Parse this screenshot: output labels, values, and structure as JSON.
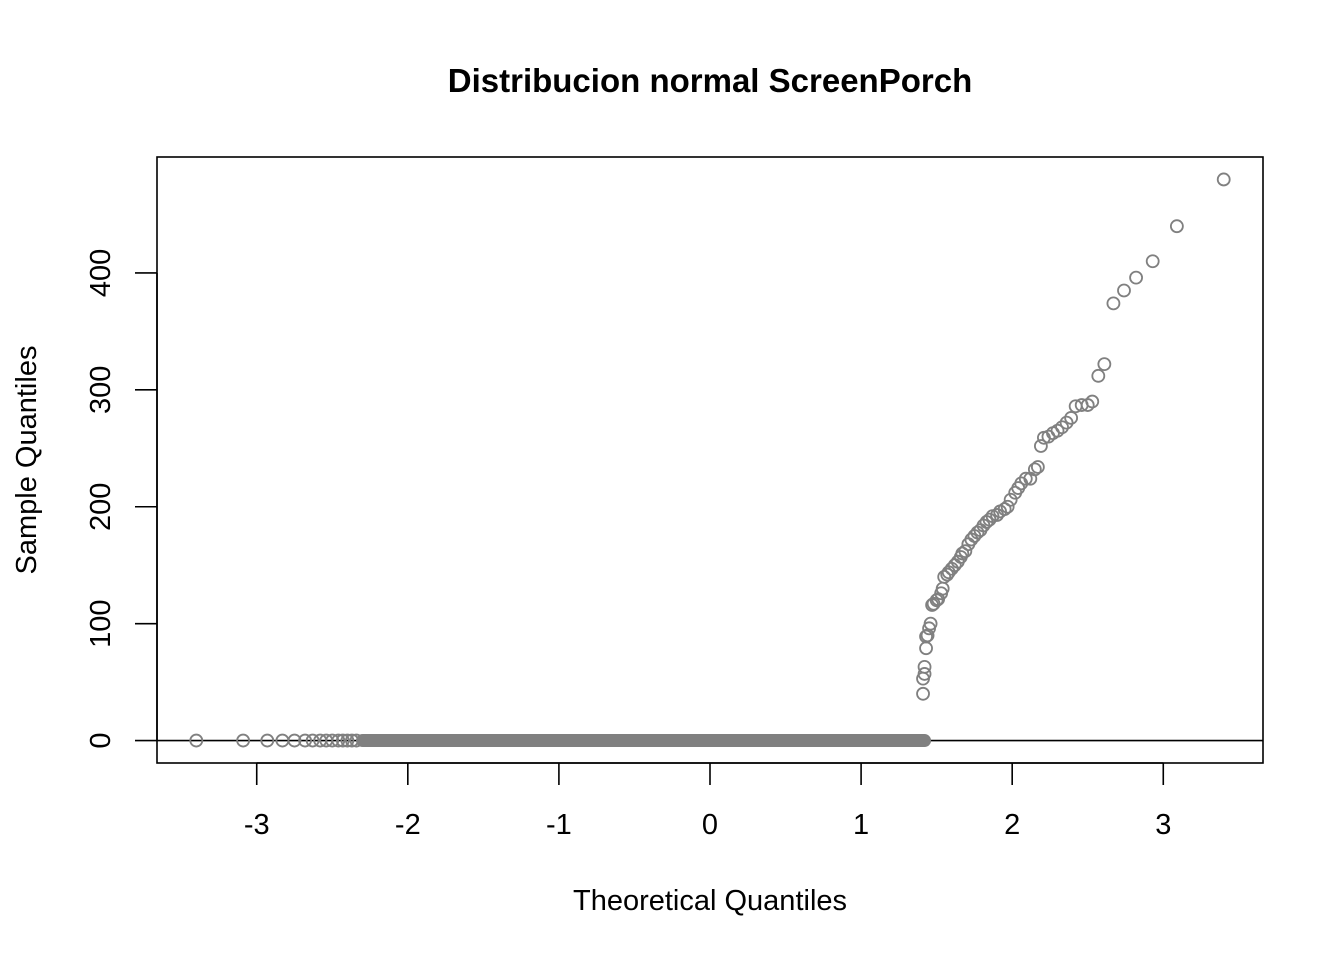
{
  "chart_data": {
    "type": "scatter",
    "title": "Distribucion normal ScreenPorch",
    "xlabel": "Theoretical Quantiles",
    "ylabel": "Sample Quantiles",
    "xlim": [
      -3.66,
      3.66
    ],
    "ylim": [
      -19.2,
      499.2
    ],
    "x_ticks": [
      -3,
      -2,
      -1,
      0,
      1,
      2,
      3
    ],
    "x_tick_labels": [
      "-3",
      "-2",
      "-1",
      "0",
      "1",
      "2",
      "3"
    ],
    "y_ticks": [
      0,
      100,
      200,
      300,
      400
    ],
    "y_tick_labels": [
      "0",
      "100",
      "200",
      "300",
      "400"
    ],
    "reference_line": {
      "type": "horizontal",
      "y": 0,
      "color": "#000000"
    },
    "grid": false,
    "legend": "none",
    "marker": {
      "shape": "open-circle",
      "color": "#808080"
    },
    "zero_segment": {
      "x_start": -2.3,
      "x_end": 1.42,
      "y": 0
    },
    "series": [
      {
        "points": [
          [
            -3.4,
            0
          ],
          [
            -3.09,
            0
          ],
          [
            -2.93,
            0
          ],
          [
            -2.83,
            0
          ],
          [
            -2.75,
            0
          ],
          [
            -2.68,
            0
          ],
          [
            -2.63,
            0
          ],
          [
            -2.58,
            0
          ],
          [
            -2.54,
            0
          ],
          [
            -2.5,
            0
          ],
          [
            -2.46,
            0
          ],
          [
            -2.43,
            0
          ],
          [
            -2.4,
            0
          ],
          [
            -2.37,
            0
          ],
          [
            -2.34,
            0
          ],
          [
            1.41,
            40
          ],
          [
            1.41,
            53
          ],
          [
            1.42,
            57
          ],
          [
            1.42,
            63
          ],
          [
            1.43,
            79
          ],
          [
            1.43,
            89
          ],
          [
            1.44,
            90
          ],
          [
            1.45,
            96
          ],
          [
            1.46,
            100
          ],
          [
            1.47,
            116
          ],
          [
            1.48,
            117
          ],
          [
            1.5,
            120
          ],
          [
            1.51,
            121
          ],
          [
            1.53,
            126
          ],
          [
            1.54,
            130
          ],
          [
            1.55,
            140
          ],
          [
            1.57,
            142
          ],
          [
            1.58,
            144
          ],
          [
            1.6,
            147
          ],
          [
            1.62,
            150
          ],
          [
            1.64,
            153
          ],
          [
            1.66,
            157
          ],
          [
            1.67,
            160
          ],
          [
            1.69,
            162
          ],
          [
            1.71,
            168
          ],
          [
            1.73,
            172
          ],
          [
            1.75,
            175
          ],
          [
            1.77,
            178
          ],
          [
            1.79,
            180
          ],
          [
            1.81,
            184
          ],
          [
            1.83,
            187
          ],
          [
            1.85,
            189
          ],
          [
            1.87,
            192
          ],
          [
            1.9,
            193
          ],
          [
            1.92,
            196
          ],
          [
            1.95,
            198
          ],
          [
            1.97,
            200
          ],
          [
            1.99,
            206
          ],
          [
            2.02,
            212
          ],
          [
            2.04,
            216
          ],
          [
            2.06,
            220
          ],
          [
            2.09,
            224
          ],
          [
            2.12,
            224
          ],
          [
            2.15,
            232
          ],
          [
            2.17,
            234
          ],
          [
            2.19,
            252
          ],
          [
            2.21,
            259
          ],
          [
            2.24,
            260
          ],
          [
            2.27,
            263
          ],
          [
            2.3,
            265
          ],
          [
            2.33,
            268
          ],
          [
            2.36,
            272
          ],
          [
            2.39,
            276
          ],
          [
            2.42,
            286
          ],
          [
            2.46,
            287
          ],
          [
            2.5,
            287
          ],
          [
            2.53,
            290
          ],
          [
            2.57,
            312
          ],
          [
            2.61,
            322
          ],
          [
            2.67,
            374
          ],
          [
            2.74,
            385
          ],
          [
            2.82,
            396
          ],
          [
            2.93,
            410
          ],
          [
            3.09,
            440
          ],
          [
            3.4,
            480
          ]
        ]
      }
    ]
  }
}
